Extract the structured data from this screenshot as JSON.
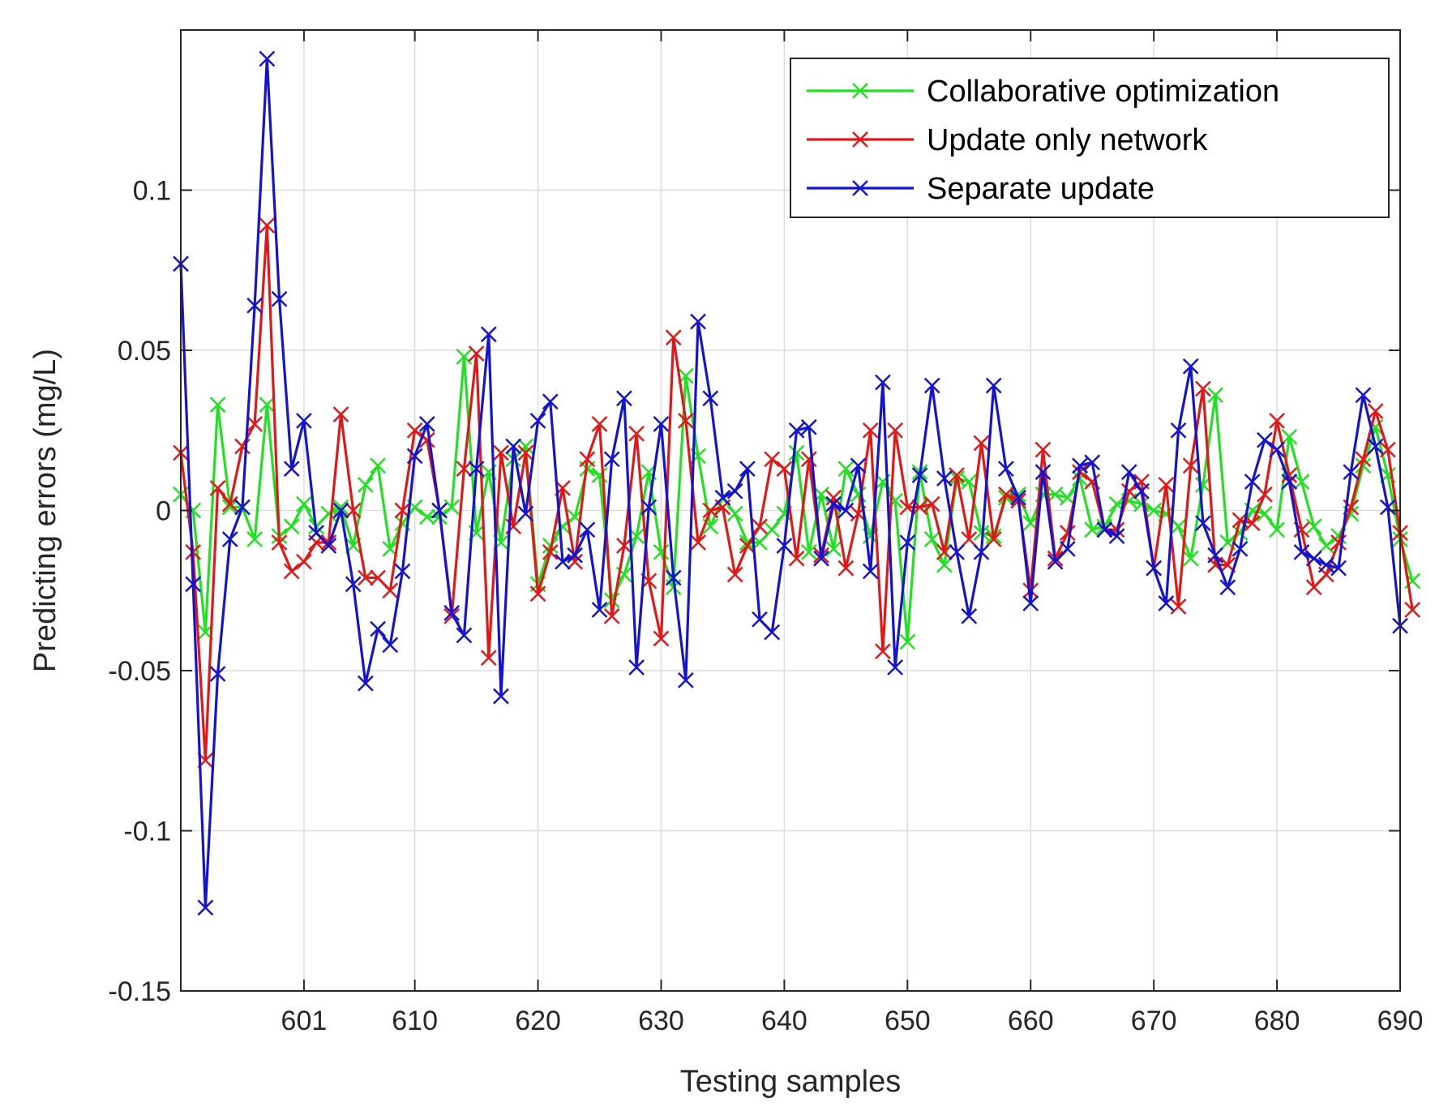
{
  "chart_data": {
    "type": "line",
    "title": "",
    "xlabel": "Testing samples",
    "ylabel": "Predicting errors (mg/L)",
    "xlim": [
      591,
      690
    ],
    "ylim": [
      -0.15,
      0.15
    ],
    "xticks": [
      601,
      610,
      620,
      630,
      640,
      650,
      660,
      670,
      680,
      690
    ],
    "yticks": [
      -0.15,
      -0.1,
      -0.05,
      0,
      0.05,
      0.1
    ],
    "ytick_labels": [
      "-0.15",
      "-0.1",
      "-0.05",
      "0",
      "0.05",
      "0.1"
    ],
    "grid": true,
    "legend_position": "top-right",
    "x_start": 591,
    "series": [
      {
        "name": "Collaborative optimization",
        "color": "#22e022",
        "marker": "x",
        "values": [
          0.005,
          0,
          -0.038,
          0.033,
          0.001,
          0.001,
          -0.009,
          0.033,
          -0.008,
          -0.005,
          0.002,
          -0.005,
          -0.001,
          0.001,
          -0.011,
          0.008,
          0.014,
          -0.012,
          -0.004,
          0.001,
          -0.002,
          -0.002,
          0.001,
          0.048,
          -0.007,
          0.012,
          -0.01,
          0.016,
          0.02,
          -0.023,
          -0.011,
          -0.005,
          -0.002,
          0.013,
          0.011,
          -0.028,
          -0.02,
          -0.008,
          0.012,
          -0.013,
          -0.024,
          0.042,
          0.017,
          -0.005,
          0.004,
          -0.001,
          -0.01,
          -0.01,
          -0.006,
          -0.001,
          0.018,
          -0.013,
          0.005,
          -0.012,
          0.013,
          0.005,
          -0.008,
          0.009,
          0.003,
          -0.041,
          0.012,
          -0.009,
          -0.017,
          0.01,
          0.009,
          -0.007,
          -0.008,
          0.004,
          0.005,
          -0.004,
          0.005,
          0.005,
          0.004,
          0.01,
          -0.006,
          -0.005,
          0.002,
          0.003,
          0.002,
          0,
          -0.001,
          -0.005,
          -0.015,
          0.008,
          0.036,
          -0.01,
          -0.007,
          0,
          -0.001,
          -0.006,
          0.023,
          0.009,
          -0.005,
          -0.011,
          -0.008,
          -0.001,
          0.014,
          0.026,
          0.011,
          -0.009,
          -0.022
        ]
      },
      {
        "name": "Update only network",
        "color": "#e01818",
        "marker": "x",
        "values": [
          0.018,
          -0.013,
          -0.078,
          0.007,
          0.002,
          0.02,
          0.027,
          0.089,
          -0.01,
          -0.019,
          -0.016,
          -0.01,
          -0.01,
          0.03,
          0,
          -0.021,
          -0.021,
          -0.025,
          0,
          0.025,
          0.022,
          0,
          -0.033,
          0.013,
          0.049,
          -0.046,
          0.018,
          -0.005,
          0.018,
          -0.026,
          -0.013,
          0.007,
          -0.016,
          0.016,
          0.027,
          -0.033,
          -0.011,
          0.024,
          -0.022,
          -0.04,
          0.054,
          0.028,
          -0.01,
          0,
          0.001,
          -0.02,
          -0.011,
          -0.005,
          0.016,
          0.013,
          -0.015,
          0.016,
          -0.014,
          0.004,
          -0.018,
          -0.001,
          0.025,
          -0.044,
          0.025,
          0.001,
          0.001,
          0.002,
          -0.013,
          0.011,
          -0.009,
          0.021,
          -0.009,
          0.005,
          0.003,
          -0.025,
          0.019,
          -0.015,
          -0.007,
          0.012,
          0.009,
          -0.006,
          -0.006,
          0.006,
          0.009,
          -0.018,
          0.008,
          -0.03,
          0.014,
          0.038,
          -0.017,
          -0.017,
          -0.003,
          -0.004,
          0.005,
          0.028,
          0.011,
          -0.006,
          -0.024,
          -0.02,
          -0.01,
          0.001,
          0.016,
          0.031,
          0.019,
          -0.007,
          -0.031
        ]
      },
      {
        "name": "Separate update",
        "color": "#1414d0",
        "marker": "x",
        "values": [
          0.077,
          -0.023,
          -0.124,
          -0.051,
          -0.009,
          0.001,
          0.064,
          0.141,
          0.066,
          0.013,
          0.028,
          -0.007,
          -0.011,
          0,
          -0.023,
          -0.054,
          -0.037,
          -0.042,
          -0.019,
          0.017,
          0.027,
          0,
          -0.032,
          -0.039,
          0.013,
          0.055,
          -0.058,
          0.02,
          -0.001,
          0.028,
          0.034,
          -0.016,
          -0.014,
          -0.006,
          -0.031,
          0.016,
          0.035,
          -0.049,
          0.001,
          0.027,
          -0.021,
          -0.053,
          0.059,
          0.035,
          0.004,
          0.006,
          0.013,
          -0.034,
          -0.038,
          -0.011,
          0.025,
          0.026,
          -0.015,
          0.002,
          0,
          0.014,
          -0.019,
          0.04,
          -0.049,
          -0.01,
          0.011,
          0.039,
          0.01,
          -0.013,
          -0.033,
          -0.013,
          0.039,
          0.013,
          0.004,
          -0.029,
          0.012,
          -0.016,
          -0.012,
          0.014,
          0.015,
          -0.006,
          -0.008,
          0.012,
          0.006,
          -0.018,
          -0.029,
          0.025,
          0.045,
          -0.004,
          -0.014,
          -0.024,
          -0.012,
          0.009,
          0.022,
          0.019,
          0.009,
          -0.013,
          -0.015,
          -0.017,
          -0.018,
          0.012,
          0.036,
          0.02,
          0.001,
          -0.036
        ]
      }
    ]
  }
}
